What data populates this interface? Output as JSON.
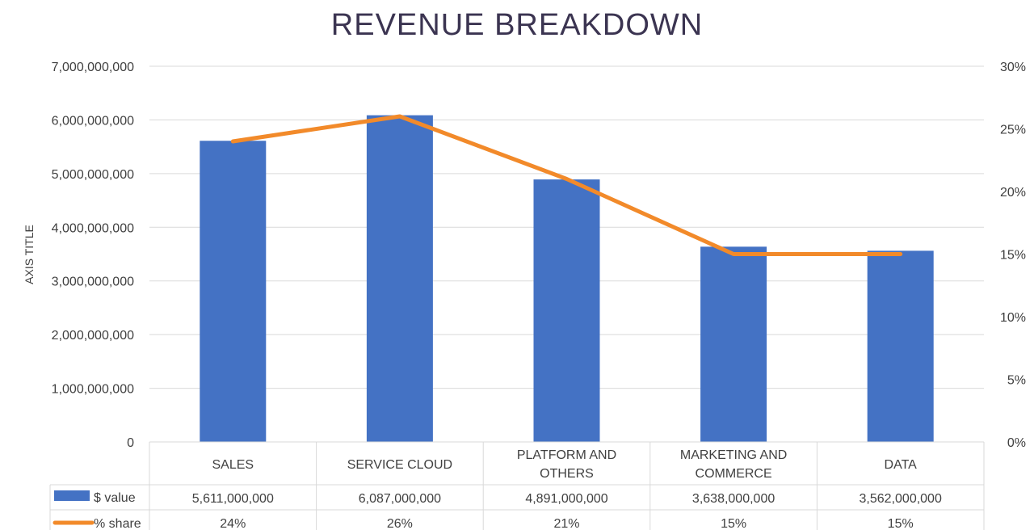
{
  "chart_data": {
    "type": "bar",
    "title": "REVENUE BREAKDOWN",
    "ylabel": "AXIS TITLE",
    "categories": [
      [
        "SALES"
      ],
      [
        "SERVICE CLOUD"
      ],
      [
        "PLATFORM AND",
        "OTHERS"
      ],
      [
        "MARKETING AND",
        "COMMERCE"
      ],
      [
        "DATA"
      ]
    ],
    "series": [
      {
        "name": "$ value",
        "type": "bar",
        "axis": "left",
        "color": "#4472c4",
        "values": [
          5611000000,
          6087000000,
          4891000000,
          3638000000,
          3562000000
        ],
        "labels": [
          "5,611,000,000",
          "6,087,000,000",
          "4,891,000,000",
          "3,638,000,000",
          "3,562,000,000"
        ]
      },
      {
        "name": "% share",
        "type": "line",
        "axis": "right",
        "color": "#f28a2a",
        "values": [
          24,
          26,
          21,
          15,
          15
        ],
        "labels": [
          "24%",
          "26%",
          "21%",
          "15%",
          "15%"
        ]
      }
    ],
    "ylim": [
      0,
      7000000000
    ],
    "y_ticks": [
      "0",
      "1,000,000,000",
      "2,000,000,000",
      "3,000,000,000",
      "4,000,000,000",
      "5,000,000,000",
      "6,000,000,000",
      "7,000,000,000"
    ],
    "y2lim": [
      0,
      30
    ],
    "y2_ticks": [
      "0%",
      "5%",
      "10%",
      "15%",
      "20%",
      "25%",
      "30%"
    ],
    "grid": true,
    "legend": "data-table"
  }
}
